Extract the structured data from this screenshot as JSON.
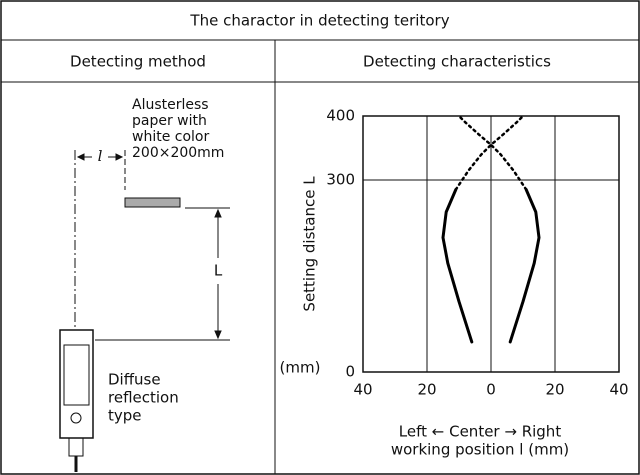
{
  "header": {
    "title": "The charactor in detecting teritory"
  },
  "columns": [
    "Detecting method",
    "Detecting characteristics"
  ],
  "method": {
    "note_lines": [
      "Alusterless",
      "paper with",
      "white color",
      "200×200mm"
    ],
    "width_label": "l",
    "distance_label": "L",
    "sensor_lines": [
      "Diffuse",
      "reflection",
      "type"
    ]
  },
  "chart_data": {
    "type": "line",
    "y_label": "Setting distance L",
    "y_unit": "(mm)",
    "x_label_lines": [
      "Left ← Center → Right",
      "working position l (mm)"
    ],
    "xlim": [
      -40,
      40
    ],
    "ylim": [
      0,
      400
    ],
    "xticks": [
      {
        "value": -40,
        "label": "40"
      },
      {
        "value": -20,
        "label": "20"
      },
      0,
      20,
      40
    ],
    "yticks": [
      0,
      300,
      400
    ],
    "grid": true,
    "series": [
      {
        "style": "solid",
        "color": "#000000",
        "x": [
          6,
          10,
          13.5,
          15,
          14,
          11
        ],
        "values": [
          47,
          110,
          170,
          210,
          250,
          285
        ]
      },
      {
        "style": "solid",
        "color": "#000000",
        "x": [
          -6,
          -10,
          -13.5,
          -15,
          -14,
          -11
        ],
        "values": [
          47,
          110,
          170,
          210,
          250,
          285
        ]
      },
      {
        "style": "dotted",
        "color": "#000000",
        "x": [
          11,
          7,
          3,
          0,
          -4,
          -8,
          -10
        ],
        "values": [
          285,
          315,
          340,
          355,
          372,
          390,
          400
        ]
      },
      {
        "style": "dotted",
        "color": "#000000",
        "x": [
          -11,
          -7,
          -3,
          0,
          4,
          8,
          10
        ],
        "values": [
          285,
          315,
          340,
          355,
          372,
          390,
          400
        ]
      }
    ]
  }
}
